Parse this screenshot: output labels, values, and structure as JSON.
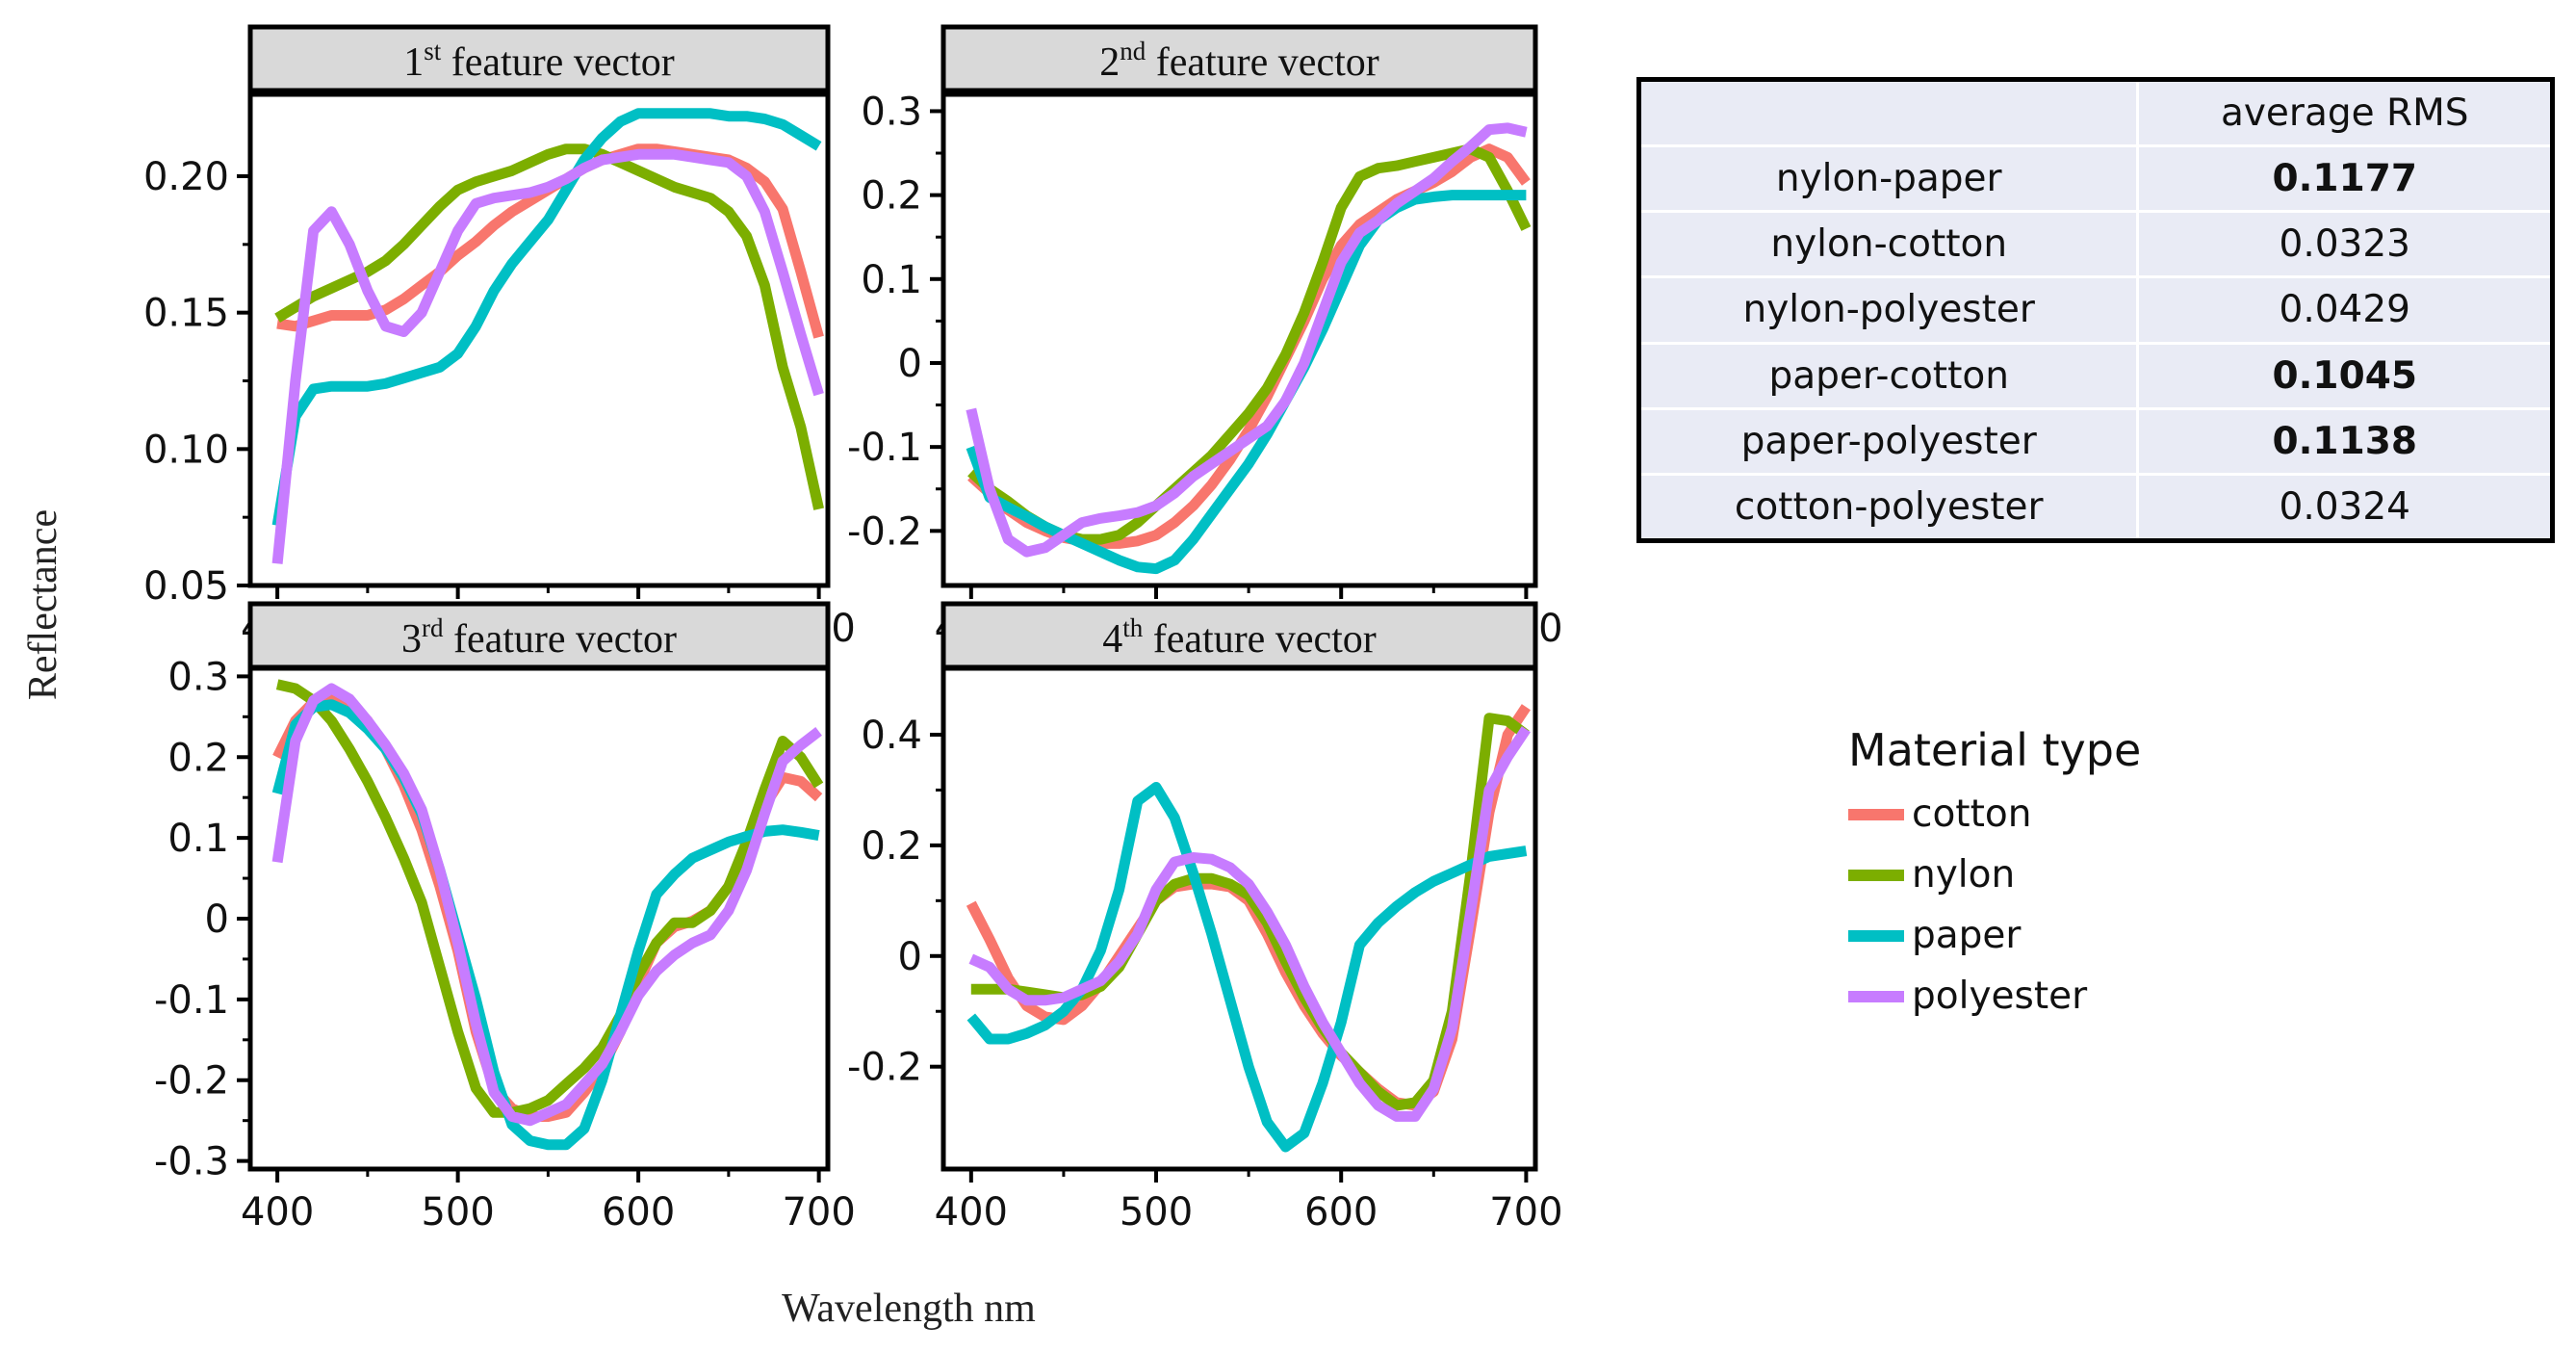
{
  "figure": {
    "ylabel": "Reflectance",
    "xlabel": "Wavelength nm"
  },
  "series_colors": {
    "cotton": "#f8766d",
    "nylon": "#7cae00",
    "paper": "#00bfc4",
    "polyester": "#c77cff"
  },
  "chart_data": [
    {
      "type": "line",
      "title": "1st feature vector",
      "title_parts": {
        "num": "1",
        "sup": "st",
        "text": "feature vector"
      },
      "xlim": [
        385,
        705
      ],
      "ylim": [
        0.05,
        0.23
      ],
      "xticks": [
        "400",
        "500",
        "600",
        "700"
      ],
      "xtick_values": [
        400,
        500,
        600,
        700
      ],
      "yticks": [
        "0.05",
        "0.10",
        "0.15",
        "0.20"
      ],
      "ytick_values": [
        0.05,
        0.1,
        0.15,
        0.2
      ],
      "x": [
        400,
        410,
        420,
        430,
        440,
        450,
        460,
        470,
        480,
        490,
        500,
        510,
        520,
        530,
        540,
        550,
        560,
        570,
        580,
        590,
        600,
        610,
        620,
        630,
        640,
        650,
        660,
        670,
        680,
        690,
        700
      ],
      "series": [
        {
          "name": "cotton",
          "values": [
            0.146,
            0.145,
            0.147,
            0.149,
            0.149,
            0.149,
            0.151,
            0.155,
            0.16,
            0.165,
            0.171,
            0.176,
            0.182,
            0.187,
            0.191,
            0.195,
            0.199,
            0.203,
            0.206,
            0.208,
            0.21,
            0.21,
            0.209,
            0.208,
            0.207,
            0.206,
            0.203,
            0.198,
            0.188,
            0.165,
            0.141
          ]
        },
        {
          "name": "nylon",
          "values": [
            0.148,
            0.152,
            0.156,
            0.159,
            0.162,
            0.165,
            0.169,
            0.175,
            0.182,
            0.189,
            0.195,
            0.198,
            0.2,
            0.202,
            0.205,
            0.208,
            0.21,
            0.21,
            0.208,
            0.205,
            0.202,
            0.199,
            0.196,
            0.194,
            0.192,
            0.187,
            0.178,
            0.16,
            0.13,
            0.108,
            0.078
          ]
        },
        {
          "name": "paper",
          "values": [
            0.072,
            0.112,
            0.122,
            0.123,
            0.123,
            0.123,
            0.124,
            0.126,
            0.128,
            0.13,
            0.135,
            0.145,
            0.158,
            0.168,
            0.176,
            0.184,
            0.195,
            0.206,
            0.214,
            0.22,
            0.223,
            0.223,
            0.223,
            0.223,
            0.223,
            0.222,
            0.222,
            0.221,
            0.219,
            0.215,
            0.211
          ]
        },
        {
          "name": "polyester",
          "values": [
            0.058,
            0.125,
            0.18,
            0.187,
            0.175,
            0.158,
            0.145,
            0.143,
            0.15,
            0.165,
            0.18,
            0.19,
            0.192,
            0.193,
            0.194,
            0.196,
            0.199,
            0.203,
            0.206,
            0.207,
            0.208,
            0.208,
            0.208,
            0.207,
            0.206,
            0.205,
            0.2,
            0.187,
            0.165,
            0.142,
            0.12
          ]
        }
      ]
    },
    {
      "type": "line",
      "title": "2nd feature vector",
      "title_parts": {
        "num": "2",
        "sup": "nd",
        "text": "feature vector"
      },
      "xlim": [
        385,
        705
      ],
      "ylim": [
        -0.265,
        0.32
      ],
      "xticks": [
        "400",
        "500",
        "600",
        "700"
      ],
      "xtick_values": [
        400,
        500,
        600,
        700
      ],
      "yticks": [
        "-0.2",
        "-0.1",
        "0",
        "0.1",
        "0.2",
        "0.3"
      ],
      "ytick_values": [
        -0.2,
        -0.1,
        0,
        0.1,
        0.2,
        0.3
      ],
      "x": [
        400,
        410,
        420,
        430,
        440,
        450,
        460,
        470,
        480,
        490,
        500,
        510,
        520,
        530,
        540,
        550,
        560,
        570,
        580,
        590,
        600,
        610,
        620,
        630,
        640,
        650,
        660,
        670,
        680,
        690,
        700
      ],
      "series": [
        {
          "name": "cotton",
          "values": [
            -0.135,
            -0.155,
            -0.175,
            -0.19,
            -0.2,
            -0.208,
            -0.212,
            -0.215,
            -0.215,
            -0.212,
            -0.205,
            -0.19,
            -0.17,
            -0.145,
            -0.115,
            -0.08,
            -0.04,
            0.005,
            0.05,
            0.1,
            0.14,
            0.165,
            0.18,
            0.195,
            0.205,
            0.215,
            0.228,
            0.245,
            0.255,
            0.245,
            0.215
          ]
        },
        {
          "name": "nylon",
          "values": [
            -0.13,
            -0.15,
            -0.165,
            -0.182,
            -0.195,
            -0.205,
            -0.21,
            -0.21,
            -0.205,
            -0.19,
            -0.17,
            -0.15,
            -0.13,
            -0.11,
            -0.085,
            -0.06,
            -0.03,
            0.01,
            0.06,
            0.12,
            0.185,
            0.222,
            0.232,
            0.235,
            0.24,
            0.245,
            0.25,
            0.255,
            0.245,
            0.205,
            0.16
          ]
        },
        {
          "name": "paper",
          "values": [
            -0.1,
            -0.16,
            -0.172,
            -0.183,
            -0.195,
            -0.205,
            -0.215,
            -0.225,
            -0.235,
            -0.243,
            -0.245,
            -0.235,
            -0.21,
            -0.18,
            -0.15,
            -0.12,
            -0.085,
            -0.045,
            -0.005,
            0.04,
            0.09,
            0.14,
            0.17,
            0.185,
            0.195,
            0.198,
            0.2,
            0.2,
            0.2,
            0.2,
            0.2
          ]
        },
        {
          "name": "polyester",
          "values": [
            -0.055,
            -0.15,
            -0.21,
            -0.225,
            -0.22,
            -0.205,
            -0.19,
            -0.185,
            -0.182,
            -0.178,
            -0.17,
            -0.155,
            -0.135,
            -0.12,
            -0.105,
            -0.09,
            -0.075,
            -0.045,
            0.0,
            0.06,
            0.12,
            0.155,
            0.17,
            0.19,
            0.205,
            0.22,
            0.24,
            0.258,
            0.278,
            0.28,
            0.275
          ]
        }
      ]
    },
    {
      "type": "line",
      "title": "3rd feature vector",
      "title_parts": {
        "num": "3",
        "sup": "rd",
        "text": "feature vector"
      },
      "xlim": [
        385,
        705
      ],
      "ylim": [
        -0.31,
        0.31
      ],
      "xticks": [
        "400",
        "500",
        "600",
        "700"
      ],
      "xtick_values": [
        400,
        500,
        600,
        700
      ],
      "yticks": [
        "-0.3",
        "-0.2",
        "-0.1",
        "0",
        "0.1",
        "0.2",
        "0.3"
      ],
      "ytick_values": [
        -0.3,
        -0.2,
        -0.1,
        0,
        0.1,
        0.2,
        0.3
      ],
      "x": [
        400,
        410,
        420,
        430,
        440,
        450,
        460,
        470,
        480,
        490,
        500,
        510,
        520,
        530,
        540,
        550,
        560,
        570,
        580,
        590,
        600,
        610,
        620,
        630,
        640,
        650,
        660,
        670,
        680,
        690,
        700
      ],
      "series": [
        {
          "name": "cotton",
          "values": [
            0.2,
            0.245,
            0.268,
            0.275,
            0.268,
            0.245,
            0.21,
            0.165,
            0.11,
            0.04,
            -0.04,
            -0.14,
            -0.21,
            -0.235,
            -0.245,
            -0.245,
            -0.24,
            -0.215,
            -0.185,
            -0.14,
            -0.08,
            -0.03,
            -0.01,
            -0.003,
            0.01,
            0.04,
            0.09,
            0.14,
            0.175,
            0.17,
            0.15
          ]
        },
        {
          "name": "nylon",
          "values": [
            0.29,
            0.285,
            0.27,
            0.245,
            0.21,
            0.17,
            0.125,
            0.075,
            0.02,
            -0.06,
            -0.14,
            -0.21,
            -0.24,
            -0.24,
            -0.235,
            -0.225,
            -0.205,
            -0.185,
            -0.16,
            -0.12,
            -0.07,
            -0.03,
            -0.005,
            -0.005,
            0.01,
            0.04,
            0.095,
            0.16,
            0.22,
            0.2,
            0.165
          ]
        },
        {
          "name": "paper",
          "values": [
            0.155,
            0.24,
            0.262,
            0.265,
            0.255,
            0.235,
            0.21,
            0.175,
            0.13,
            0.06,
            -0.02,
            -0.1,
            -0.19,
            -0.255,
            -0.275,
            -0.28,
            -0.28,
            -0.26,
            -0.2,
            -0.12,
            -0.04,
            0.03,
            0.055,
            0.075,
            0.085,
            0.095,
            0.102,
            0.108,
            0.11,
            0.107,
            0.103
          ]
        },
        {
          "name": "polyester",
          "values": [
            0.07,
            0.22,
            0.27,
            0.285,
            0.272,
            0.245,
            0.215,
            0.18,
            0.135,
            0.06,
            -0.03,
            -0.13,
            -0.215,
            -0.245,
            -0.25,
            -0.24,
            -0.23,
            -0.205,
            -0.18,
            -0.14,
            -0.095,
            -0.065,
            -0.045,
            -0.03,
            -0.02,
            0.01,
            0.06,
            0.13,
            0.195,
            0.215,
            0.232
          ]
        }
      ]
    },
    {
      "type": "line",
      "title": "4th feature vector",
      "title_parts": {
        "num": "4",
        "sup": "th",
        "text": "feature vector"
      },
      "xlim": [
        385,
        705
      ],
      "ylim": [
        -0.385,
        0.52
      ],
      "xticks": [
        "400",
        "500",
        "600",
        "700"
      ],
      "xtick_values": [
        400,
        500,
        600,
        700
      ],
      "yticks": [
        "-0.2",
        "0",
        "0.2",
        "0.4"
      ],
      "ytick_values": [
        -0.2,
        0,
        0.2,
        0.4
      ],
      "x": [
        400,
        410,
        420,
        430,
        440,
        450,
        460,
        470,
        480,
        490,
        500,
        510,
        520,
        530,
        540,
        550,
        560,
        570,
        580,
        590,
        600,
        610,
        620,
        630,
        640,
        650,
        660,
        670,
        680,
        690,
        700
      ],
      "series": [
        {
          "name": "cotton",
          "values": [
            0.095,
            0.03,
            -0.04,
            -0.09,
            -0.11,
            -0.115,
            -0.09,
            -0.05,
            0.0,
            0.05,
            0.1,
            0.125,
            0.13,
            0.13,
            0.125,
            0.1,
            0.04,
            -0.03,
            -0.09,
            -0.14,
            -0.18,
            -0.21,
            -0.24,
            -0.265,
            -0.27,
            -0.245,
            -0.15,
            0.05,
            0.26,
            0.4,
            0.45
          ]
        },
        {
          "name": "nylon",
          "values": [
            -0.06,
            -0.06,
            -0.06,
            -0.065,
            -0.07,
            -0.075,
            -0.07,
            -0.055,
            -0.02,
            0.04,
            0.1,
            0.13,
            0.14,
            0.14,
            0.13,
            0.11,
            0.06,
            -0.01,
            -0.075,
            -0.13,
            -0.175,
            -0.21,
            -0.245,
            -0.27,
            -0.265,
            -0.225,
            -0.1,
            0.15,
            0.43,
            0.425,
            0.4
          ]
        },
        {
          "name": "paper",
          "values": [
            -0.11,
            -0.15,
            -0.15,
            -0.14,
            -0.125,
            -0.1,
            -0.06,
            0.01,
            0.12,
            0.28,
            0.305,
            0.25,
            0.15,
            0.04,
            -0.08,
            -0.2,
            -0.3,
            -0.345,
            -0.32,
            -0.23,
            -0.12,
            0.02,
            0.06,
            0.09,
            0.115,
            0.135,
            0.15,
            0.165,
            0.18,
            0.185,
            0.19
          ]
        },
        {
          "name": "polyester",
          "values": [
            -0.005,
            -0.02,
            -0.06,
            -0.08,
            -0.08,
            -0.075,
            -0.06,
            -0.045,
            -0.01,
            0.04,
            0.12,
            0.17,
            0.178,
            0.175,
            0.16,
            0.13,
            0.08,
            0.02,
            -0.055,
            -0.12,
            -0.175,
            -0.23,
            -0.27,
            -0.29,
            -0.29,
            -0.24,
            -0.13,
            0.08,
            0.3,
            0.36,
            0.41
          ]
        }
      ]
    }
  ],
  "rms_table": {
    "header": [
      "",
      "average RMS"
    ],
    "rows": [
      {
        "pair": "nylon-paper",
        "value": "0.1177",
        "bold": true
      },
      {
        "pair": "nylon-cotton",
        "value": "0.0323",
        "bold": false
      },
      {
        "pair": "nylon-polyester",
        "value": "0.0429",
        "bold": false
      },
      {
        "pair": "paper-cotton",
        "value": "0.1045",
        "bold": true
      },
      {
        "pair": "paper-polyester",
        "value": "0.1138",
        "bold": true
      },
      {
        "pair": "cotton-polyester",
        "value": "0.0324",
        "bold": false
      }
    ]
  },
  "legend": {
    "title": "Material type",
    "items": [
      "cotton",
      "nylon",
      "paper",
      "polyester"
    ]
  }
}
